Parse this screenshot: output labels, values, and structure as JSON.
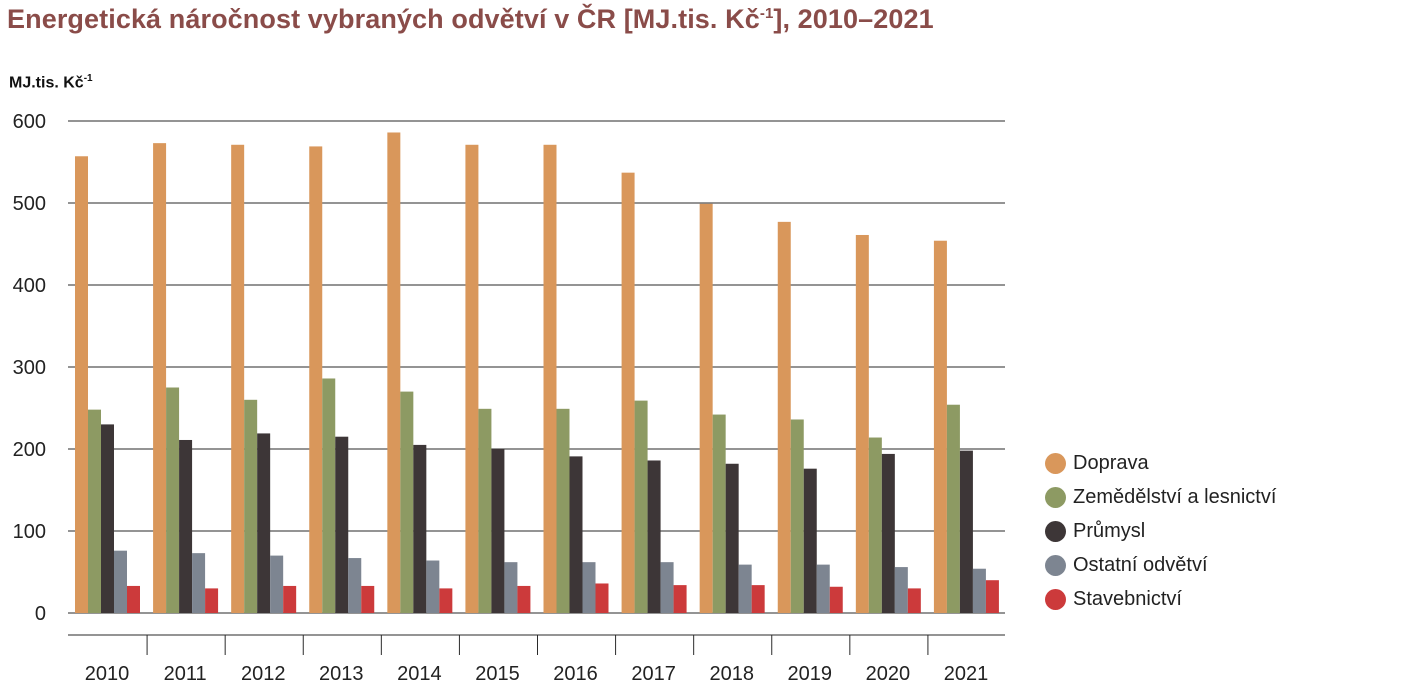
{
  "title": {
    "text": "Energetická náročnost vybraných odvětví v ČR [MJ.tis. Kč",
    "sup": "-1",
    "suffix": "], 2010–2021"
  },
  "y_unit": {
    "text": "MJ.tis. Kč",
    "sup": "-1"
  },
  "chart_data": {
    "type": "bar",
    "categories": [
      "2010",
      "2011",
      "2012",
      "2013",
      "2014",
      "2015",
      "2016",
      "2017",
      "2018",
      "2019",
      "2020",
      "2021"
    ],
    "series": [
      {
        "name": "Doprava",
        "color": "#d9975b",
        "values": [
          557,
          573,
          571,
          569,
          586,
          571,
          571,
          537,
          499,
          477,
          461,
          454
        ]
      },
      {
        "name": "Zemědělství a lesnictví",
        "color": "#8d9a63",
        "values": [
          248,
          275,
          260,
          286,
          270,
          249,
          249,
          259,
          242,
          236,
          214,
          254
        ]
      },
      {
        "name": "Průmysl",
        "color": "#3d3637",
        "values": [
          230,
          211,
          219,
          215,
          205,
          200,
          191,
          186,
          182,
          176,
          194,
          198
        ]
      },
      {
        "name": "Ostatní odvětví",
        "color": "#7d8591",
        "values": [
          76,
          73,
          70,
          67,
          64,
          62,
          62,
          62,
          59,
          59,
          56,
          54
        ]
      },
      {
        "name": "Stavebnictví",
        "color": "#cc3a3b",
        "values": [
          33,
          30,
          33,
          33,
          30,
          33,
          36,
          34,
          34,
          32,
          30,
          40
        ]
      }
    ],
    "ylim": [
      0,
      600
    ],
    "yticks": [
      0,
      100,
      200,
      300,
      400,
      500,
      600
    ],
    "grid": true,
    "legend_position": "right"
  }
}
